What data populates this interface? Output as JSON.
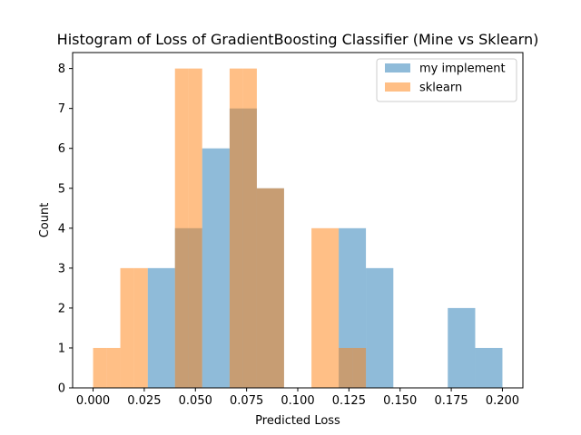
{
  "chart_data": {
    "type": "bar",
    "title": "Histogram of Loss of GradientBoosting Classifier (Mine vs Sklearn)",
    "xlabel": "Predicted Loss",
    "ylabel": "Count",
    "xlim": [
      -0.01,
      0.21
    ],
    "ylim": [
      0,
      8.4
    ],
    "x_ticks": [
      "0.000",
      "0.025",
      "0.050",
      "0.075",
      "0.100",
      "0.125",
      "0.150",
      "0.175",
      "0.200"
    ],
    "x_tick_values": [
      0,
      0.025,
      0.05,
      0.075,
      0.1,
      0.125,
      0.15,
      0.175,
      0.2
    ],
    "y_ticks": [
      0,
      1,
      2,
      3,
      4,
      5,
      6,
      7,
      8
    ],
    "legend_position": "top-right",
    "series": [
      {
        "name": "my implement",
        "color": "#1f77b4",
        "opacity": 0.5,
        "bin_edges": [
          0.0267,
          0.04,
          0.0533,
          0.0667,
          0.08,
          0.0933,
          0.1067,
          0.12,
          0.1333,
          0.1467,
          0.16,
          0.1733,
          0.1867,
          0.2
        ],
        "values": [
          3,
          4,
          6,
          7,
          5,
          0,
          0,
          4,
          3,
          0,
          0,
          2,
          1
        ]
      },
      {
        "name": "sklearn",
        "color": "#ff7f0e",
        "opacity": 0.5,
        "bin_edges": [
          0.0,
          0.0067,
          0.0133,
          0.02,
          0.0267,
          0.0333,
          0.04,
          0.0467,
          0.0533,
          0.06,
          0.0667,
          0.0733,
          0.08,
          0.0867,
          0.0933,
          0.1,
          0.1067,
          0.1133,
          0.12,
          0.1267,
          0.1333
        ],
        "values": [
          1,
          1,
          3,
          3,
          0,
          0,
          8,
          8,
          0,
          0,
          8,
          8,
          5,
          5,
          0,
          0,
          4,
          4,
          1,
          1
        ]
      }
    ]
  }
}
